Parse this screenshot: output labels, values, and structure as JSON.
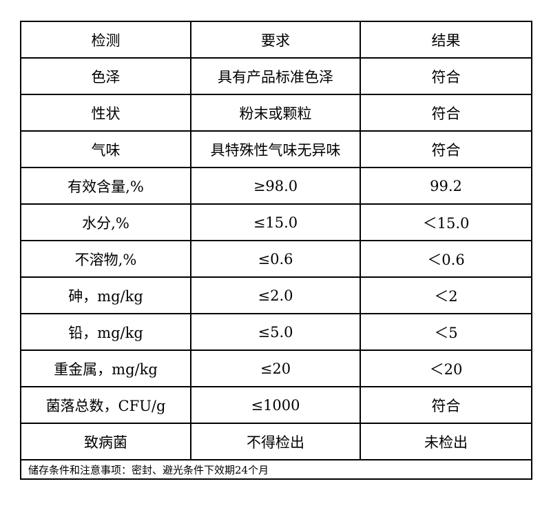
{
  "headers": [
    "检测",
    "要求",
    "结果"
  ],
  "rows": [
    [
      "色泽",
      "具有产品标准色泽",
      "符合"
    ],
    [
      "性状",
      "粉末或颗粒",
      "符合"
    ],
    [
      "气味",
      "具特殊性气味无异味",
      "符合"
    ],
    [
      "有效含量,%",
      "≥98.0",
      "99.2"
    ],
    [
      "水分,%",
      "≤15.0",
      "＜15.0"
    ],
    [
      "不溶物,%",
      "≤0.6",
      "＜0.6"
    ],
    [
      "砷，mg/kg",
      "≤2.0",
      "＜2"
    ],
    [
      "铅，mg/kg",
      "≤5.0",
      "＜5"
    ],
    [
      "重金属，mg/kg",
      "≤20",
      "＜20"
    ],
    [
      "菌落总数，CFU/g",
      "≤1000",
      "符合"
    ],
    [
      "致病菌",
      "不得检出",
      "未检出"
    ]
  ],
  "footer": "储存条件和注意事项：密封、避光条件下效期24个月"
}
